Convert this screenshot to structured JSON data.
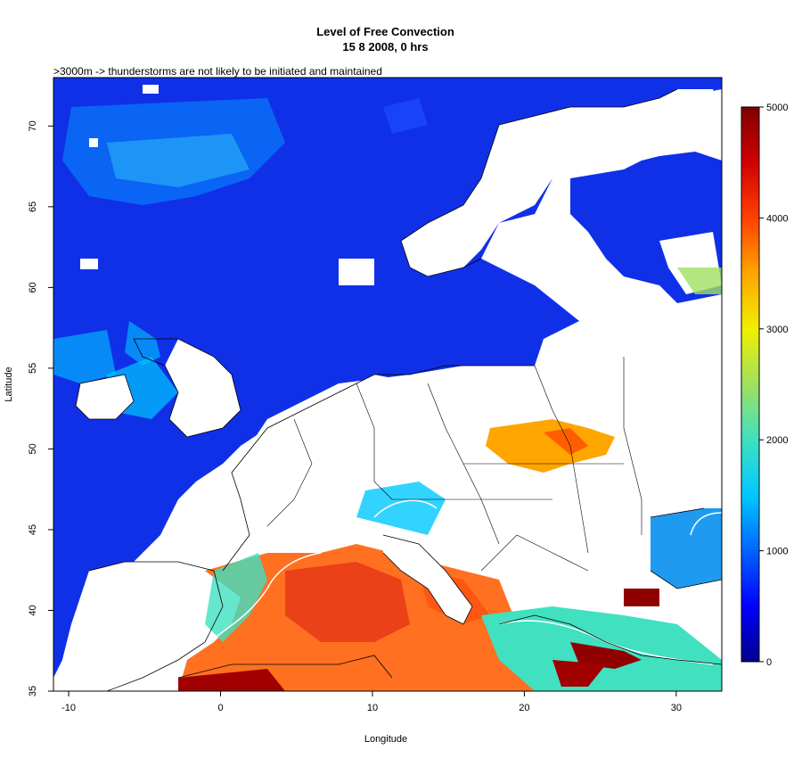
{
  "title_line1": "Level of Free Convection",
  "title_line2": "15 8 2008, 0 hrs",
  "note": ">3000m -> thunderstorms are not likely to be initiated and maintained",
  "x_axis": {
    "label": "Longitude",
    "ticks": [
      "-10",
      "0",
      "10",
      "20",
      "30"
    ],
    "tick_values": [
      -10,
      0,
      10,
      20,
      30
    ]
  },
  "y_axis": {
    "label": "Latitude",
    "ticks": [
      "35",
      "40",
      "45",
      "50",
      "55",
      "60",
      "65",
      "70"
    ],
    "tick_values": [
      35,
      40,
      45,
      50,
      55,
      60,
      65,
      70
    ]
  },
  "colorbar": {
    "ticks": [
      "0",
      "1000",
      "2000",
      "3000",
      "4000",
      "5000"
    ],
    "tick_values": [
      0,
      1000,
      2000,
      3000,
      4000,
      5000
    ],
    "colors": [
      "#00008b",
      "#0000ff",
      "#0064ff",
      "#00c8ff",
      "#40e0c0",
      "#a0e060",
      "#f0f000",
      "#ffa500",
      "#ff4000",
      "#d00000",
      "#800000"
    ]
  },
  "map_extent": {
    "lon": [
      -11,
      33
    ],
    "lat": [
      35,
      73
    ]
  }
}
